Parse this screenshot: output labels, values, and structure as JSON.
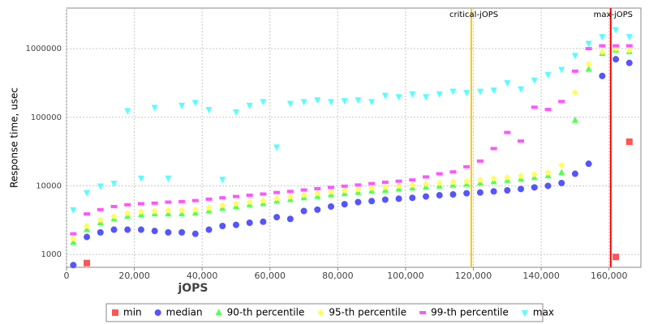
{
  "chart_data": {
    "type": "scatter",
    "x_label": "jOPS",
    "y_label": "Response time, usec",
    "log_y": true,
    "grid": true,
    "legend": "bottom",
    "xlim": [
      0,
      169400
    ],
    "ylim": [
      650,
      3900000
    ],
    "xticks": [
      0,
      {
        "value": 20000,
        "label": "20,000"
      },
      {
        "value": 40000,
        "label": "40,000"
      },
      {
        "value": 60000,
        "label": "60,000"
      },
      {
        "value": 80000,
        "label": "80,000"
      },
      {
        "value": 100000,
        "label": "100,000"
      },
      {
        "value": 120000,
        "label": "120,000"
      },
      {
        "value": 140000,
        "label": "140,000"
      },
      {
        "value": 160000,
        "label": "160,000"
      }
    ],
    "yticks": [
      1000,
      10000,
      100000,
      1000000
    ],
    "markers": [
      {
        "label": "critical-jOPS",
        "x": 119400,
        "color": "#ffc800"
      },
      {
        "label": "max-jOPS",
        "x": 160500,
        "color": "#ff0000"
      }
    ],
    "x": [
      2000,
      6000,
      10000,
      14000,
      18000,
      22000,
      26000,
      30000,
      34000,
      38000,
      42000,
      46000,
      50000,
      54000,
      58000,
      62000,
      66000,
      70000,
      74000,
      78000,
      82000,
      86000,
      90000,
      94000,
      98000,
      102000,
      106000,
      110000,
      114000,
      118000,
      122000,
      126000,
      130000,
      134000,
      138000,
      142000,
      146000,
      150000,
      154000,
      158000,
      162000,
      166000
    ],
    "series": [
      {
        "name": "min",
        "color": "#ff5555",
        "marker": "square",
        "values": [
          null,
          750,
          null,
          null,
          null,
          null,
          null,
          null,
          null,
          null,
          null,
          null,
          null,
          null,
          null,
          null,
          null,
          null,
          null,
          null,
          null,
          null,
          null,
          null,
          null,
          null,
          null,
          null,
          null,
          null,
          null,
          null,
          null,
          null,
          null,
          null,
          null,
          null,
          null,
          null,
          920,
          44000
        ]
      },
      {
        "name": "median",
        "color": "#5555ff",
        "marker": "circle",
        "values": [
          700,
          1800,
          2100,
          2300,
          2300,
          2300,
          2200,
          2100,
          2100,
          2000,
          2300,
          2600,
          2700,
          2900,
          3000,
          3500,
          3300,
          4300,
          4500,
          5000,
          5400,
          5800,
          6000,
          6300,
          6500,
          6700,
          7000,
          7300,
          7500,
          7800,
          8000,
          8300,
          8600,
          9000,
          9500,
          10000,
          11000,
          15000,
          21000,
          400000,
          700000,
          620000
        ]
      },
      {
        "name": "90-th percentile",
        "color": "#55ff55",
        "marker": "triangle-up",
        "values": [
          1500,
          2300,
          2900,
          3300,
          3600,
          3800,
          3900,
          3900,
          3900,
          4000,
          4300,
          4700,
          5000,
          5300,
          5500,
          6000,
          6300,
          6700,
          7000,
          7400,
          7700,
          8000,
          8400,
          8600,
          9000,
          9300,
          9600,
          9900,
          10200,
          10500,
          11000,
          11500,
          12000,
          12500,
          13200,
          14000,
          15500,
          90000,
          500000,
          850000,
          950000,
          900000
        ]
      },
      {
        "name": "95-th percentile",
        "color": "#ffff55",
        "marker": "diamond",
        "values": [
          1700,
          2600,
          3200,
          3600,
          4000,
          4200,
          4300,
          4400,
          4400,
          4500,
          4800,
          5200,
          5500,
          5800,
          6100,
          6600,
          7000,
          7400,
          7800,
          8200,
          8600,
          8900,
          9300,
          9600,
          10000,
          10300,
          10700,
          11000,
          11400,
          11700,
          12200,
          12800,
          13300,
          14000,
          14700,
          15600,
          20000,
          230000,
          600000,
          900000,
          1000000,
          950000
        ]
      },
      {
        "name": "99-th percentile",
        "color": "#ff55ff",
        "marker": "rect",
        "values": [
          2000,
          3900,
          4500,
          5000,
          5300,
          5500,
          5600,
          5800,
          5900,
          6100,
          6400,
          6700,
          7000,
          7300,
          7600,
          8000,
          8300,
          8700,
          9100,
          9500,
          9900,
          10300,
          10800,
          11300,
          11700,
          12200,
          13500,
          15000,
          16000,
          19000,
          23000,
          35000,
          60000,
          45000,
          140000,
          130000,
          170000,
          470000,
          1000000,
          1100000,
          1100000,
          1100000
        ]
      },
      {
        "name": "max",
        "color": "#55ffff",
        "marker": "triangle-down",
        "values": [
          4500,
          8000,
          10000,
          11000,
          125000,
          13000,
          140000,
          13000,
          150000,
          165000,
          130000,
          12500,
          120000,
          150000,
          170000,
          37000,
          160000,
          170000,
          180000,
          170000,
          175000,
          180000,
          170000,
          210000,
          200000,
          220000,
          200000,
          220000,
          240000,
          230000,
          240000,
          250000,
          320000,
          260000,
          350000,
          420000,
          500000,
          800000,
          1200000,
          1500000,
          1900000,
          1500000
        ]
      }
    ]
  }
}
